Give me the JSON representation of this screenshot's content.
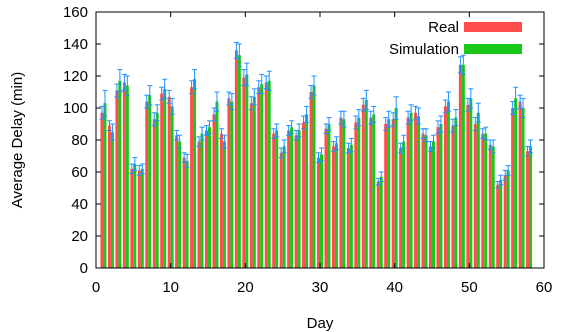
{
  "chart_data": {
    "type": "bar",
    "xlabel": "Day",
    "ylabel": "Average Delay (min)",
    "xlim": [
      0,
      60
    ],
    "ylim": [
      0,
      160
    ],
    "xticks": [
      0,
      10,
      20,
      30,
      40,
      50,
      60
    ],
    "yticks": [
      0,
      20,
      40,
      60,
      80,
      100,
      120,
      140,
      160
    ],
    "legend_position": "top-right",
    "grid": false,
    "colors": {
      "Real": "#ff4d4d",
      "Simulation": "#19c819",
      "error": "#1e90ff"
    },
    "series": [
      {
        "name": "Real",
        "x": [
          1,
          2,
          3,
          4,
          5,
          6,
          7,
          8,
          9,
          10,
          11,
          12,
          13,
          14,
          15,
          16,
          17,
          18,
          19,
          20,
          21,
          22,
          23,
          24,
          25,
          26,
          27,
          28,
          29,
          30,
          31,
          32,
          33,
          34,
          35,
          36,
          37,
          38,
          39,
          40,
          41,
          42,
          43,
          44,
          45,
          46,
          47,
          48,
          49,
          50,
          51,
          52,
          53,
          54,
          55,
          56,
          57,
          58
        ],
        "values": [
          97,
          89,
          111,
          116,
          62,
          61,
          104,
          93,
          109,
          107,
          83,
          69,
          113,
          79,
          86,
          96,
          84,
          106,
          136,
          119,
          103,
          113,
          116,
          84,
          72,
          86,
          83,
          91,
          110,
          69,
          87,
          76,
          94,
          75,
          91,
          102,
          94,
          54,
          90,
          93,
          75,
          94,
          97,
          84,
          76,
          88,
          101,
          89,
          127,
          102,
          90,
          84,
          77,
          52,
          58,
          100,
          104,
          73
        ],
        "errors": [
          4,
          3,
          4,
          5,
          3,
          3,
          4,
          4,
          4,
          4,
          3,
          3,
          4,
          3,
          3,
          4,
          3,
          4,
          5,
          5,
          4,
          4,
          4,
          3,
          3,
          3,
          3,
          4,
          4,
          3,
          3,
          3,
          4,
          3,
          4,
          4,
          4,
          2,
          4,
          4,
          3,
          4,
          4,
          3,
          3,
          4,
          4,
          4,
          5,
          4,
          4,
          3,
          3,
          2,
          3,
          4,
          4,
          3
        ]
      },
      {
        "name": "Simulation",
        "x": [
          1,
          2,
          3,
          4,
          5,
          6,
          7,
          8,
          9,
          10,
          11,
          12,
          13,
          14,
          15,
          16,
          17,
          18,
          19,
          20,
          21,
          22,
          23,
          24,
          25,
          26,
          27,
          28,
          29,
          30,
          31,
          32,
          33,
          34,
          35,
          36,
          37,
          38,
          39,
          40,
          41,
          42,
          43,
          44,
          45,
          46,
          47,
          48,
          49,
          50,
          51,
          52,
          53,
          54,
          55,
          56,
          57,
          58
        ],
        "values": [
          103,
          85,
          117,
          114,
          65,
          62,
          108,
          97,
          112,
          101,
          79,
          67,
          118,
          84,
          88,
          104,
          79,
          104,
          133,
          121,
          107,
          115,
          117,
          86,
          76,
          88,
          86,
          96,
          114,
          71,
          90,
          78,
          93,
          77,
          94,
          105,
          96,
          57,
          93,
          100,
          79,
          97,
          95,
          83,
          79,
          90,
          104,
          94,
          127,
          106,
          97,
          84,
          76,
          55,
          61,
          106,
          100,
          76
        ],
        "errors": [
          8,
          5,
          7,
          6,
          4,
          3,
          6,
          5,
          6,
          5,
          4,
          4,
          6,
          4,
          4,
          6,
          4,
          5,
          7,
          7,
          5,
          6,
          6,
          4,
          4,
          4,
          4,
          5,
          6,
          4,
          4,
          4,
          5,
          4,
          5,
          6,
          5,
          3,
          5,
          7,
          4,
          5,
          5,
          4,
          4,
          5,
          6,
          5,
          6,
          6,
          6,
          4,
          4,
          3,
          3,
          7,
          6,
          4
        ]
      }
    ]
  }
}
